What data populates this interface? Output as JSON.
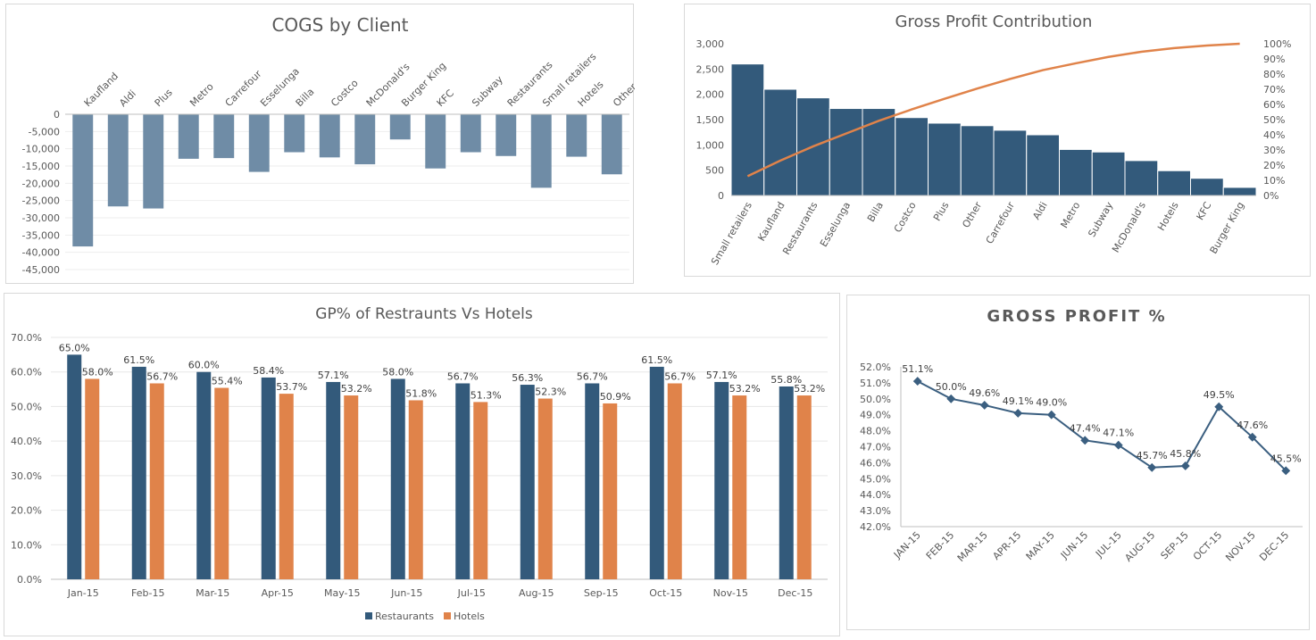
{
  "chart_data": [
    {
      "id": "cogs",
      "type": "bar",
      "title": "COGS by Client",
      "categories": [
        "Kaufland",
        "Aldi",
        "Plus",
        "Metro",
        "Carrefour",
        "Esselunga",
        "Billa",
        "Costco",
        "McDonald's",
        "Burger King",
        "KFC",
        "Subway",
        "Restaurants",
        "Small retailers",
        "Hotels",
        "Other"
      ],
      "values": [
        -38300,
        -26700,
        -27300,
        -12900,
        -12700,
        -16700,
        -11000,
        -12500,
        -14500,
        -7300,
        -15700,
        -11000,
        -12100,
        -21300,
        -12300,
        -17400
      ],
      "ylim": [
        -45000,
        0
      ],
      "yticks": [
        "0",
        "-5,000",
        "-10,000",
        "-15,000",
        "-20,000",
        "-25,000",
        "-30,000",
        "-35,000",
        "-40,000",
        "-45,000"
      ],
      "grid": true,
      "colors": {
        "bar": "#6f8ca6"
      }
    },
    {
      "id": "gp",
      "type": "bar",
      "title": "Gross Profit Contribution",
      "categories": [
        "Small retailers",
        "Kaufland",
        "Restaurants",
        "Esselunga",
        "Billa",
        "Costco",
        "Plus",
        "Other",
        "Carrefour",
        "Aldi",
        "Metro",
        "Subway",
        "McDonald's",
        "Hotels",
        "KFC",
        "Burger King"
      ],
      "series": [
        {
          "type": "bar",
          "values": [
            2600,
            2100,
            1930,
            1720,
            1720,
            1540,
            1430,
            1380,
            1290,
            1200,
            910,
            860,
            690,
            490,
            340,
            160
          ]
        },
        {
          "type": "line",
          "axis": "right",
          "values": [
            12.7,
            23.0,
            32.4,
            40.8,
            49.2,
            56.7,
            63.7,
            70.5,
            76.8,
            82.6,
            87.1,
            91.3,
            94.7,
            97.1,
            98.8,
            100
          ]
        }
      ],
      "ylim": [
        0,
        3000
      ],
      "yticks": [
        "0",
        "500",
        "1,000",
        "1,500",
        "2,000",
        "2,500",
        "3,000"
      ],
      "y2ticks": [
        "0%",
        "10%",
        "20%",
        "30%",
        "40%",
        "50%",
        "60%",
        "70%",
        "80%",
        "90%",
        "100%"
      ],
      "colors": {
        "bar": "#335a7b",
        "line": "#e0834a"
      }
    },
    {
      "id": "gprh",
      "type": "bar",
      "title": "GP% of Restraunts Vs Hotels",
      "categories": [
        "Jan-15",
        "Feb-15",
        "Mar-15",
        "Apr-15",
        "May-15",
        "Jun-15",
        "Jul-15",
        "Aug-15",
        "Sep-15",
        "Oct-15",
        "Nov-15",
        "Dec-15"
      ],
      "series": [
        {
          "name": "Restaurants",
          "values": [
            65.0,
            61.5,
            60.0,
            58.4,
            57.1,
            58.0,
            56.7,
            56.3,
            56.7,
            61.5,
            57.1,
            55.8
          ],
          "labels": [
            "65.0%",
            "61.5%",
            "60.0%",
            "58.4%",
            "57.1%",
            "58.0%",
            "56.7%",
            "56.3%",
            "56.7%",
            "61.5%",
            "57.1%",
            "55.8%"
          ]
        },
        {
          "name": "Hotels",
          "values": [
            58.0,
            56.7,
            55.4,
            53.7,
            53.2,
            51.8,
            51.3,
            52.3,
            50.9,
            56.7,
            53.2,
            53.2
          ],
          "labels": [
            "58.0%",
            "56.7%",
            "55.4%",
            "53.7%",
            "53.2%",
            "51.8%",
            "51.3%",
            "52.3%",
            "50.9%",
            "56.7%",
            "53.2%",
            "53.2%"
          ]
        }
      ],
      "ylim": [
        0,
        70
      ],
      "yticks": [
        "0.0%",
        "10.0%",
        "20.0%",
        "30.0%",
        "40.0%",
        "50.0%",
        "60.0%",
        "70.0%"
      ],
      "legend": "bottom",
      "colors": {
        "Restaurants": "#335a7b",
        "Hotels": "#e0834a"
      }
    },
    {
      "id": "gpp",
      "type": "line",
      "title": "GROSS PROFIT %",
      "categories": [
        "JAN-15",
        "FEB-15",
        "MAR-15",
        "APR-15",
        "MAY-15",
        "JUN-15",
        "JUL-15",
        "AUG-15",
        "SEP-15",
        "OCT-15",
        "NOV-15",
        "DEC-15"
      ],
      "values": [
        51.1,
        50.0,
        49.6,
        49.1,
        49.0,
        47.4,
        47.1,
        45.7,
        45.8,
        49.5,
        47.6,
        45.5
      ],
      "labels": [
        "51.1%",
        "50.0%",
        "49.6%",
        "49.1%",
        "49.0%",
        "47.4%",
        "47.1%",
        "45.7%",
        "45.8%",
        "49.5%",
        "47.6%",
        "45.5%"
      ],
      "ylim": [
        42,
        52
      ],
      "yticks": [
        "42.0%",
        "43.0%",
        "44.0%",
        "45.0%",
        "46.0%",
        "47.0%",
        "48.0%",
        "49.0%",
        "50.0%",
        "51.0%",
        "52.0%"
      ],
      "colors": {
        "line": "#3b5f80"
      }
    }
  ]
}
